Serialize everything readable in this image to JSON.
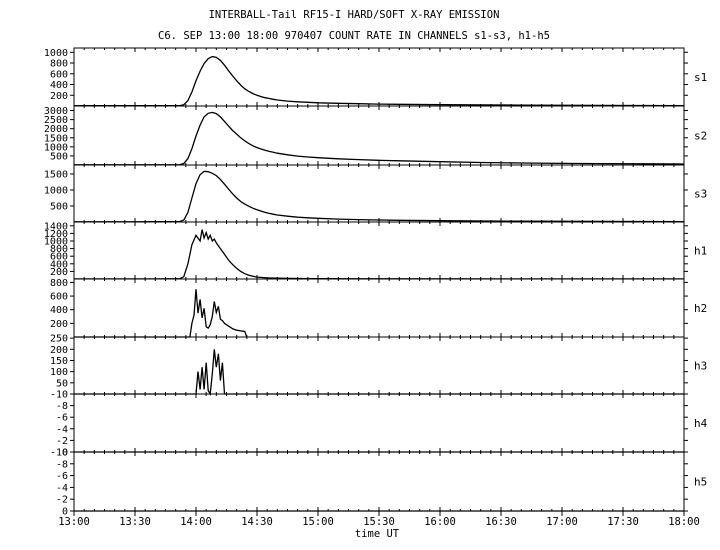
{
  "title_line1": "INTERBALL-Tail RF15-I HARD/SOFT X-RAY EMISSION",
  "title_line2": "C6. SEP 13:00 18:00 970407  COUNT RATE IN CHANNELS s1-s3, h1-h5",
  "chart_data": {
    "type": "line",
    "title": "INTERBALL-Tail RF15-I HARD/SOFT X-RAY EMISSION",
    "xlabel": "time UT",
    "x_ticks": [
      "13:00",
      "13:30",
      "14:00",
      "14:30",
      "15:00",
      "15:30",
      "16:00",
      "16:30",
      "17:00",
      "17:30",
      "18:00"
    ],
    "x_range_minutes": [
      0,
      300
    ],
    "panels": [
      {
        "name": "s1",
        "ylim": [
          0,
          1080
        ],
        "yticks": [
          200,
          400,
          600,
          800,
          1000
        ],
        "x": [
          0,
          30,
          52,
          54,
          56,
          58,
          60,
          62,
          64,
          66,
          68,
          70,
          72,
          74,
          76,
          78,
          80,
          82,
          84,
          86,
          88,
          90,
          92,
          94,
          96,
          98,
          100,
          105,
          110,
          115,
          120,
          130,
          140,
          150,
          160,
          180,
          200,
          220,
          240,
          260,
          280,
          300
        ],
        "y": [
          5,
          5,
          8,
          25,
          100,
          260,
          470,
          650,
          790,
          880,
          920,
          905,
          850,
          760,
          660,
          560,
          470,
          390,
          320,
          270,
          230,
          200,
          175,
          155,
          140,
          125,
          112,
          92,
          78,
          68,
          60,
          50,
          42,
          36,
          32,
          25,
          20,
          16,
          13,
          11,
          9,
          8
        ]
      },
      {
        "name": "s2",
        "ylim": [
          0,
          3250
        ],
        "yticks": [
          500,
          1000,
          1500,
          2000,
          2500,
          3000
        ],
        "x": [
          0,
          30,
          52,
          54,
          56,
          58,
          60,
          62,
          64,
          66,
          68,
          70,
          72,
          74,
          76,
          78,
          80,
          82,
          84,
          86,
          88,
          90,
          92,
          94,
          96,
          98,
          100,
          105,
          110,
          115,
          120,
          130,
          140,
          150,
          160,
          180,
          200,
          220,
          240,
          260,
          280,
          300
        ],
        "y": [
          10,
          10,
          20,
          80,
          350,
          900,
          1600,
          2200,
          2650,
          2850,
          2900,
          2830,
          2650,
          2400,
          2150,
          1900,
          1700,
          1500,
          1330,
          1180,
          1060,
          960,
          880,
          810,
          750,
          700,
          650,
          560,
          490,
          440,
          400,
          340,
          300,
          260,
          230,
          180,
          140,
          110,
          90,
          75,
          65,
          55
        ]
      },
      {
        "name": "s3",
        "ylim": [
          0,
          1780
        ],
        "yticks": [
          500,
          1000,
          1500
        ],
        "x": [
          0,
          30,
          52,
          54,
          56,
          58,
          60,
          62,
          64,
          66,
          68,
          70,
          72,
          74,
          76,
          78,
          80,
          82,
          84,
          86,
          88,
          90,
          92,
          94,
          96,
          98,
          100,
          105,
          110,
          115,
          120,
          130,
          140,
          150,
          160,
          180,
          200,
          220,
          240,
          260,
          280,
          300
        ],
        "y": [
          5,
          5,
          15,
          60,
          300,
          750,
          1200,
          1480,
          1580,
          1570,
          1520,
          1450,
          1330,
          1180,
          1030,
          880,
          750,
          640,
          560,
          490,
          430,
          380,
          340,
          300,
          270,
          245,
          220,
          180,
          150,
          130,
          115,
          90,
          75,
          62,
          52,
          40,
          32,
          26,
          21,
          18,
          15,
          13
        ]
      },
      {
        "name": "h1",
        "ylim": [
          0,
          1500
        ],
        "yticks": [
          200,
          400,
          600,
          800,
          1000,
          1200,
          1400
        ],
        "x": [
          0,
          40,
          52,
          54,
          56,
          58,
          60,
          62,
          63,
          64,
          65,
          66,
          67,
          68,
          69,
          70,
          72,
          74,
          76,
          78,
          80,
          82,
          84,
          86,
          88,
          90,
          95,
          100,
          110,
          120,
          140,
          300
        ],
        "y": [
          3,
          3,
          8,
          60,
          400,
          900,
          1150,
          1000,
          1300,
          1080,
          1220,
          1050,
          1150,
          1000,
          1050,
          950,
          800,
          650,
          500,
          380,
          280,
          200,
          140,
          100,
          70,
          50,
          30,
          20,
          12,
          8,
          5,
          3
        ]
      },
      {
        "name": "h2",
        "ylim": [
          0,
          850
        ],
        "yticks": [
          200,
          400,
          600,
          800
        ],
        "x": [
          0,
          57,
          58,
          59,
          60,
          61,
          62,
          63,
          64,
          65,
          66,
          67,
          68,
          69,
          70,
          71,
          72,
          73,
          74,
          75,
          76,
          77,
          78,
          79,
          80,
          81,
          82,
          83,
          84,
          85
        ],
        "y": [
          0,
          0,
          200,
          320,
          700,
          350,
          550,
          280,
          420,
          150,
          130,
          180,
          300,
          520,
          360,
          450,
          260,
          240,
          200,
          180,
          160,
          140,
          120,
          110,
          100,
          95,
          90,
          85,
          80,
          0
        ]
      },
      {
        "name": "h3",
        "ylim": [
          0,
          255
        ],
        "yticks": [
          50,
          100,
          150,
          200,
          250
        ],
        "x": [
          0,
          60,
          61,
          62,
          63,
          64,
          65,
          66,
          67,
          68,
          69,
          70,
          71,
          72,
          73,
          74,
          75,
          76,
          300
        ],
        "y": [
          0,
          0,
          100,
          20,
          120,
          20,
          140,
          15,
          0,
          90,
          200,
          120,
          180,
          60,
          140,
          0,
          0,
          0,
          0
        ]
      },
      {
        "name": "h4",
        "ylim": [
          0,
          10
        ],
        "yticks": [
          0,
          2,
          4,
          6,
          8,
          10
        ],
        "tick_labels": [
          "0",
          "-2",
          "-4",
          "-6",
          "-8",
          "-10"
        ],
        "x": [
          0,
          300
        ],
        "y": [
          0,
          0
        ]
      },
      {
        "name": "h5",
        "ylim": [
          0,
          10
        ],
        "yticks": [
          0,
          2,
          4,
          6,
          8,
          10
        ],
        "tick_labels": [
          "0",
          "-2",
          "-4",
          "-6",
          "-8",
          "-10"
        ],
        "x": [
          0,
          300
        ],
        "y": [
          0,
          0
        ]
      }
    ]
  }
}
